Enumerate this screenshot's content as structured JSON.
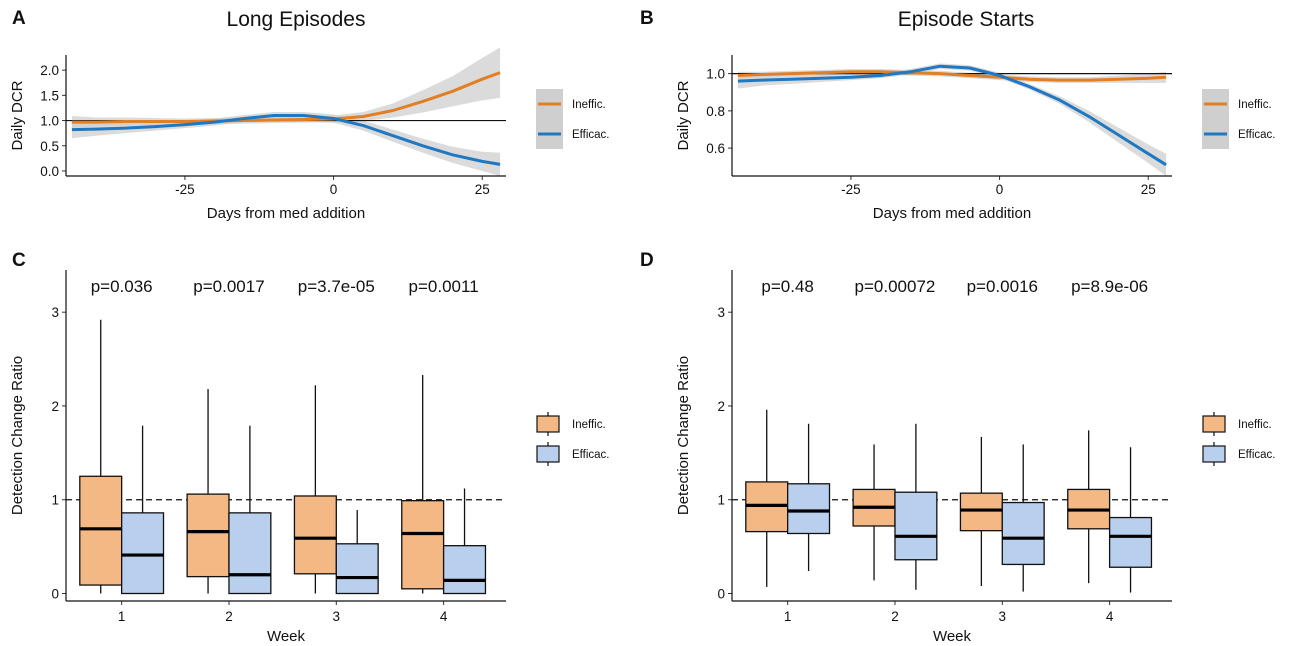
{
  "colors": {
    "ineffic_line": "#E07F24",
    "efficac_line": "#1F78C1",
    "ineffic_fill": "#F4B884",
    "efficac_fill": "#B9CFEE",
    "ribbon": "#CFCFCF"
  },
  "chart_data": [
    {
      "panel": "A",
      "type": "line",
      "title": "Long Episodes",
      "xlabel": "Days from med addition",
      "ylabel": "Daily DCR",
      "xlim": [
        -45,
        29
      ],
      "ylim": [
        -0.1,
        2.3
      ],
      "xticks": [
        -25,
        0,
        25
      ],
      "xtick_labels": [
        "-25",
        "0",
        "25"
      ],
      "yticks": [
        0,
        0.5,
        1,
        1.5,
        2
      ],
      "ytick_labels": [
        "0.0",
        "0.5",
        "1.0",
        "1.5",
        "2.0"
      ],
      "hline": 1,
      "legend_position": "right",
      "series": [
        {
          "name": "Ineffic.",
          "x": [
            -44,
            -40,
            -35,
            -30,
            -25,
            -20,
            -15,
            -10,
            -5,
            0,
            5,
            10,
            15,
            20,
            25,
            28
          ],
          "y": [
            0.97,
            0.97,
            0.98,
            0.98,
            0.98,
            0.99,
            1.0,
            1.01,
            1.02,
            1.03,
            1.08,
            1.2,
            1.38,
            1.58,
            1.82,
            1.95
          ],
          "lower": [
            0.85,
            0.88,
            0.9,
            0.91,
            0.92,
            0.93,
            0.94,
            0.95,
            0.96,
            0.96,
            0.99,
            1.06,
            1.16,
            1.28,
            1.4,
            1.45
          ],
          "upper": [
            1.09,
            1.06,
            1.06,
            1.05,
            1.04,
            1.05,
            1.06,
            1.07,
            1.08,
            1.1,
            1.17,
            1.34,
            1.6,
            1.88,
            2.24,
            2.45
          ]
        },
        {
          "name": "Efficac.",
          "x": [
            -44,
            -40,
            -35,
            -30,
            -25,
            -20,
            -15,
            -10,
            -5,
            0,
            5,
            10,
            15,
            20,
            25,
            28
          ],
          "y": [
            0.82,
            0.83,
            0.85,
            0.88,
            0.92,
            0.97,
            1.04,
            1.1,
            1.1,
            1.04,
            0.9,
            0.7,
            0.5,
            0.32,
            0.19,
            0.13
          ],
          "lower": [
            0.65,
            0.7,
            0.75,
            0.8,
            0.85,
            0.9,
            0.97,
            1.03,
            1.03,
            0.96,
            0.8,
            0.58,
            0.36,
            0.16,
            0.0,
            -0.1
          ],
          "upper": [
            0.99,
            0.96,
            0.95,
            0.96,
            0.99,
            1.04,
            1.11,
            1.17,
            1.17,
            1.12,
            1.0,
            0.82,
            0.64,
            0.48,
            0.38,
            0.36
          ]
        }
      ]
    },
    {
      "panel": "B",
      "type": "line",
      "title": "Episode Starts",
      "xlabel": "Days from med addition",
      "ylabel": "Daily DCR",
      "xlim": [
        -45,
        29
      ],
      "ylim": [
        0.45,
        1.1
      ],
      "xticks": [
        -25,
        0,
        25
      ],
      "xtick_labels": [
        "-25",
        "0",
        "25"
      ],
      "yticks": [
        0.6,
        0.8,
        1.0
      ],
      "ytick_labels": [
        "0.6",
        "0.8",
        "1.0"
      ],
      "hline": 1,
      "legend_position": "right",
      "series": [
        {
          "name": "Ineffic.",
          "x": [
            -44,
            -40,
            -35,
            -30,
            -25,
            -20,
            -15,
            -10,
            -5,
            0,
            5,
            10,
            15,
            20,
            25,
            28
          ],
          "y": [
            0.99,
            0.995,
            1.0,
            1.005,
            1.01,
            1.01,
            1.005,
            1.0,
            0.99,
            0.98,
            0.97,
            0.965,
            0.965,
            0.97,
            0.975,
            0.98
          ],
          "lower": [
            0.97,
            0.98,
            0.985,
            0.99,
            0.995,
            0.995,
            0.99,
            0.985,
            0.975,
            0.965,
            0.955,
            0.95,
            0.95,
            0.95,
            0.95,
            0.95
          ],
          "upper": [
            1.01,
            1.01,
            1.015,
            1.02,
            1.025,
            1.025,
            1.02,
            1.015,
            1.005,
            0.995,
            0.985,
            0.98,
            0.98,
            0.99,
            1.0,
            1.01
          ]
        },
        {
          "name": "Efficac.",
          "x": [
            -44,
            -40,
            -35,
            -30,
            -25,
            -20,
            -15,
            -10,
            -5,
            0,
            5,
            10,
            15,
            20,
            25,
            28
          ],
          "y": [
            0.96,
            0.965,
            0.97,
            0.975,
            0.98,
            0.99,
            1.01,
            1.04,
            1.03,
            0.99,
            0.93,
            0.86,
            0.77,
            0.67,
            0.57,
            0.51
          ],
          "lower": [
            0.92,
            0.935,
            0.945,
            0.955,
            0.965,
            0.975,
            0.995,
            1.025,
            1.015,
            0.975,
            0.915,
            0.84,
            0.74,
            0.63,
            0.52,
            0.45
          ],
          "upper": [
            1.0,
            0.995,
            0.995,
            0.995,
            0.995,
            1.005,
            1.025,
            1.055,
            1.045,
            1.005,
            0.945,
            0.88,
            0.8,
            0.71,
            0.62,
            0.57
          ]
        }
      ]
    },
    {
      "panel": "C",
      "type": "box",
      "xlabel": "Week",
      "ylabel": "Detection Change Ratio",
      "categories": [
        "1",
        "2",
        "3",
        "4"
      ],
      "ylim": [
        -0.08,
        3.45
      ],
      "yticks": [
        0,
        1,
        2,
        3
      ],
      "ytick_labels": [
        "0",
        "1",
        "2",
        "3"
      ],
      "hline_dashed": 1,
      "legend_position": "right",
      "pvalues": [
        "p=0.036",
        "p=0.0017",
        "p=3.7e-05",
        "p=0.0011"
      ],
      "series": [
        {
          "name": "Ineffic.",
          "boxes": [
            {
              "min": 0.0,
              "q1": 0.09,
              "median": 0.69,
              "q3": 1.25,
              "max": 2.92
            },
            {
              "min": 0.0,
              "q1": 0.18,
              "median": 0.66,
              "q3": 1.06,
              "max": 2.18
            },
            {
              "min": 0.0,
              "q1": 0.21,
              "median": 0.59,
              "q3": 1.04,
              "max": 2.22
            },
            {
              "min": 0.0,
              "q1": 0.05,
              "median": 0.64,
              "q3": 0.99,
              "max": 2.33
            }
          ]
        },
        {
          "name": "Efficac.",
          "boxes": [
            {
              "min": 0.0,
              "q1": 0.0,
              "median": 0.41,
              "q3": 0.86,
              "max": 1.79
            },
            {
              "min": 0.0,
              "q1": 0.0,
              "median": 0.2,
              "q3": 0.86,
              "max": 1.79
            },
            {
              "min": 0.0,
              "q1": 0.0,
              "median": 0.17,
              "q3": 0.53,
              "max": 0.89
            },
            {
              "min": 0.0,
              "q1": 0.0,
              "median": 0.14,
              "q3": 0.51,
              "max": 1.12
            }
          ]
        }
      ]
    },
    {
      "panel": "D",
      "type": "box",
      "xlabel": "Week",
      "ylabel": "Detection Change Ratio",
      "categories": [
        "1",
        "2",
        "3",
        "4"
      ],
      "ylim": [
        -0.08,
        3.45
      ],
      "yticks": [
        0,
        1,
        2,
        3
      ],
      "ytick_labels": [
        "0",
        "1",
        "2",
        "3"
      ],
      "hline_dashed": 1,
      "legend_position": "right",
      "pvalues": [
        "p=0.48",
        "p=0.00072",
        "p=0.0016",
        "p=8.9e-06"
      ],
      "series": [
        {
          "name": "Ineffic.",
          "boxes": [
            {
              "min": 0.07,
              "q1": 0.66,
              "median": 0.94,
              "q3": 1.19,
              "max": 1.96
            },
            {
              "min": 0.14,
              "q1": 0.72,
              "median": 0.92,
              "q3": 1.11,
              "max": 1.59
            },
            {
              "min": 0.08,
              "q1": 0.67,
              "median": 0.89,
              "q3": 1.07,
              "max": 1.67
            },
            {
              "min": 0.11,
              "q1": 0.69,
              "median": 0.89,
              "q3": 1.11,
              "max": 1.74
            }
          ]
        },
        {
          "name": "Efficac.",
          "boxes": [
            {
              "min": 0.24,
              "q1": 0.64,
              "median": 0.88,
              "q3": 1.17,
              "max": 1.81
            },
            {
              "min": 0.04,
              "q1": 0.36,
              "median": 0.61,
              "q3": 1.08,
              "max": 1.81
            },
            {
              "min": 0.02,
              "q1": 0.31,
              "median": 0.59,
              "q3": 0.97,
              "max": 1.59
            },
            {
              "min": 0.01,
              "q1": 0.28,
              "median": 0.61,
              "q3": 0.81,
              "max": 1.56
            }
          ]
        }
      ]
    }
  ]
}
